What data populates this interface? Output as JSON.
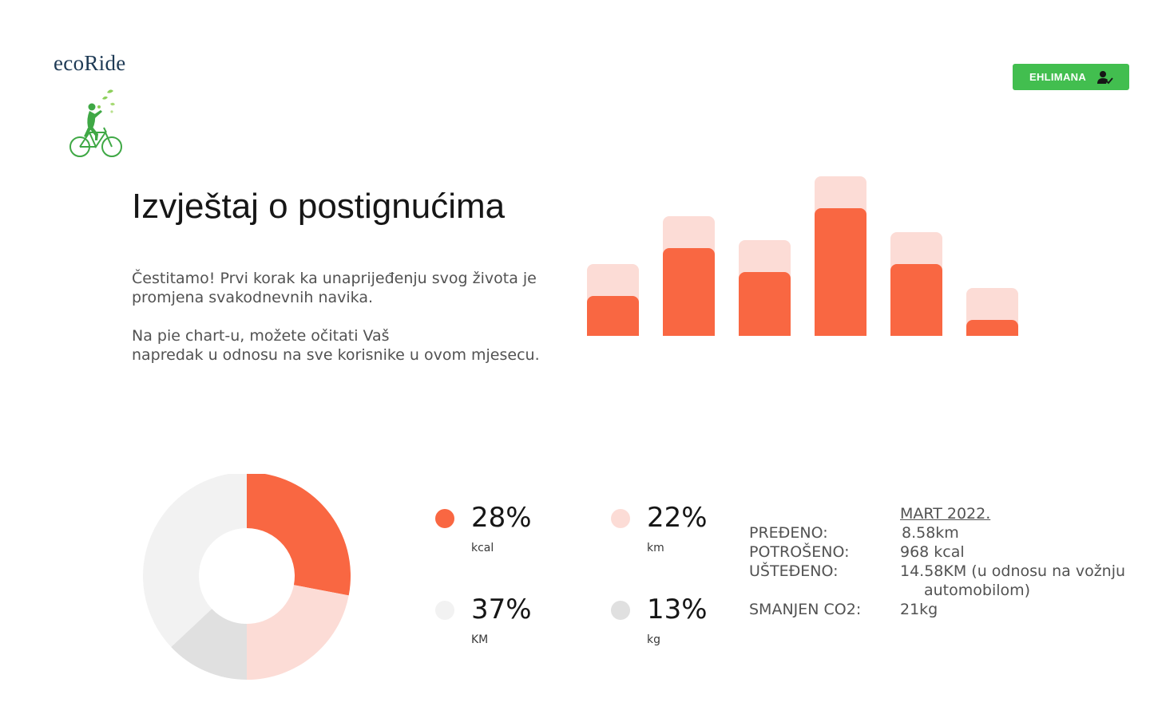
{
  "brand": {
    "name": "ecoRide"
  },
  "header": {
    "user_label": "EHLIMANA"
  },
  "main": {
    "title": "Izvještaj o postignućima",
    "intro_1": [
      "Čestitamo! Prvi korak ka unaprijeđenju svog života je",
      "promjena svakodnevnih navika."
    ],
    "intro_2": [
      "Na pie chart-u, možete očitati Vaš",
      "napredak u odnosu na sve korisnike u ovom mjesecu."
    ]
  },
  "colors": {
    "accent": "#f96742",
    "accent_light": "#fcdcd6",
    "neutral_light": "#f2f2f2",
    "neutral": "#e0e0e0",
    "brand_green": "#42be4f"
  },
  "chart_data": [
    {
      "type": "bar",
      "stacked": true,
      "categories": [
        "",
        "",
        "",
        "",
        "",
        ""
      ],
      "series": [
        {
          "values": [
            50,
            110,
            80,
            160,
            90,
            20
          ]
        },
        {
          "values": [
            40,
            40,
            40,
            40,
            40,
            40
          ]
        }
      ],
      "ylim": [
        0,
        200
      ],
      "grid": false,
      "legend": "none"
    },
    {
      "type": "pie",
      "donut": true,
      "labels": [
        "kcal",
        "km",
        "KM",
        "kg"
      ],
      "values": [
        28,
        22,
        37,
        13
      ],
      "slice_order": [
        "kcal",
        "km",
        "kg",
        "KM"
      ],
      "colors": [
        "#f96742",
        "#fcdcd6",
        "#f2f2f2",
        "#e0e0e0"
      ]
    }
  ],
  "legend": {
    "items": [
      {
        "pct": "28%",
        "unit": "kcal",
        "color": "#f96742"
      },
      {
        "pct": "22%",
        "unit": "km",
        "color": "#fcdcd6"
      },
      {
        "pct": "37%",
        "unit": "KM",
        "color": "#f2f2f2"
      },
      {
        "pct": "13%",
        "unit": "kg",
        "color": "#e0e0e0"
      }
    ]
  },
  "stats": {
    "period": "MART 2022.",
    "rows": [
      {
        "label": "PREĐENO:",
        "value": "8.58km"
      },
      {
        "label": "POTROŠENO:",
        "value": "968 kcal"
      },
      {
        "label": "UŠTEĐENO:",
        "value": "14.58KM (u odnosu na vožnju",
        "value_cont": "automobilom)"
      },
      {
        "label": "SMANJEN CO2:",
        "value": "21kg"
      }
    ]
  }
}
